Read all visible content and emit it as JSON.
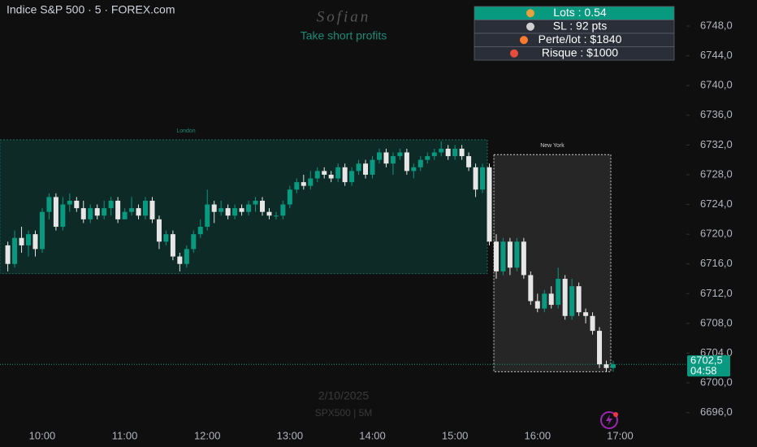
{
  "chart_data": {
    "type": "candlestick",
    "title": "Indice S&P 500 · 5 · FOREX.com",
    "watermark": "Sofian",
    "subtitle": "Take short profits",
    "date_watermark": "2/10/2025",
    "symbol_watermark": "SPX500 | 5M",
    "info": [
      "Lots : 0.54",
      "SL : 92 pts",
      "Perte/lot : $1840",
      "Risque : $1000"
    ],
    "categories": [
      null,
      null,
      null,
      null,
      null,
      "10:00",
      null,
      null,
      null,
      null,
      null,
      null,
      null,
      null,
      null,
      null,
      null,
      "11:00",
      null,
      null,
      null,
      null,
      null,
      null,
      null,
      null,
      null,
      null,
      null,
      "12:00",
      null,
      null,
      null,
      null,
      null,
      null,
      null,
      null,
      null,
      null,
      null,
      "13:00",
      null,
      null,
      null,
      null,
      null,
      null,
      null,
      null,
      null,
      null,
      null,
      "14:00",
      null,
      null,
      null,
      null,
      null,
      null,
      null,
      null,
      null,
      null,
      null,
      "15:00",
      null,
      null,
      null,
      null,
      null,
      null,
      null,
      null,
      null,
      null,
      null,
      "16:00",
      null,
      null,
      null,
      null,
      null,
      null,
      null,
      null,
      null,
      null,
      null,
      "17:00"
    ],
    "open": [
      6718.5,
      6716,
      6719.5,
      6718.5,
      6720,
      6718,
      6723,
      6725,
      6721,
      6724,
      6724.5,
      6723.5,
      6722,
      6723.5,
      6722.5,
      6723.5,
      6724.5,
      6722,
      6723,
      6723.5,
      6722.5,
      6724.5,
      6722,
      6719,
      6720,
      6717,
      6716,
      6718,
      6720,
      6721,
      6724,
      6723,
      6723.5,
      6722.5,
      6723.5,
      6723,
      6724,
      6724.5,
      6723,
      6722.5,
      6722.5,
      6724,
      6726,
      6727,
      6726.5,
      6727.5,
      6728.5,
      6728,
      6727.5,
      6729,
      6727,
      6728.5,
      6729.5,
      6728,
      6730,
      6731,
      6729.5,
      6730.5,
      6731,
      6728.5,
      6729,
      6730,
      6730.5,
      6731,
      6731.5,
      6730.5,
      6731.5,
      6730.5,
      6729,
      6726,
      6729,
      6719,
      6715,
      6719,
      6715.5,
      6719,
      6714.5,
      6711,
      6710,
      6712,
      6710.5,
      6714,
      6709,
      6713,
      6709.5,
      6709,
      6707,
      6702.5,
      6702,
      null
    ],
    "high": [
      6719,
      6720.5,
      6721,
      6720.5,
      6720.5,
      6723.5,
      6725.5,
      6725.5,
      6725,
      6725.5,
      6725,
      6724.5,
      6724,
      6724,
      6724.5,
      6725,
      6725,
      6723.5,
      6725,
      6724,
      6725,
      6725,
      6722.5,
      6720.5,
      6720.5,
      6717.5,
      6718.5,
      6720.5,
      6722,
      6726,
      6724.5,
      6724.5,
      6724,
      6724,
      6724,
      6724.5,
      6725,
      6725,
      6723.5,
      6723,
      6724.5,
      6726.5,
      6727.5,
      6728,
      6728.5,
      6729,
      6729,
      6728.5,
      6729.5,
      6729.5,
      6729,
      6730,
      6730,
      6730.5,
      6731.5,
      6731.5,
      6731,
      6731.5,
      6731.5,
      6729.5,
      6730.5,
      6731,
      6731.5,
      6732.5,
      6732,
      6732,
      6732,
      6731,
      6729.5,
      6729.5,
      6729.5,
      6720,
      6719.5,
      6719.5,
      6719.5,
      6719.5,
      6715,
      6712,
      6712.5,
      6713,
      6715.5,
      6714.5,
      6714,
      6713.5,
      6710,
      6709.5,
      6707.5,
      6703,
      6703,
      null
    ],
    "low": [
      6715,
      6715.5,
      6717.5,
      6717,
      6717,
      6717.5,
      6722,
      6720.5,
      6720.5,
      6723,
      6723,
      6721.5,
      6721.5,
      6722,
      6722,
      6722.5,
      6721.5,
      6722,
      6722.5,
      6722,
      6722,
      6721.5,
      6718,
      6718.5,
      6716.5,
      6715,
      6715.5,
      6717.5,
      6719.5,
      6720.5,
      6721.5,
      6722.5,
      6722,
      6722,
      6722.5,
      6722.5,
      6723,
      6722.5,
      6722,
      6722,
      6722,
      6723.5,
      6725.5,
      6726,
      6726,
      6727,
      6727.5,
      6727,
      6727,
      6726.5,
      6726.5,
      6728,
      6727.5,
      6727.5,
      6729.5,
      6729,
      6728,
      6730,
      6728,
      6727.5,
      6728.5,
      6729.5,
      6730,
      6730.5,
      6730,
      6730,
      6730,
      6728.5,
      6725,
      6725.5,
      6718.5,
      6714,
      6714.5,
      6714.5,
      6715,
      6714,
      6710.5,
      6709.5,
      6709.5,
      6710,
      6710,
      6708.5,
      6708.5,
      6709,
      6708,
      6706.5,
      6702,
      6701.5,
      6701.5,
      null
    ],
    "close": [
      6716,
      6719.5,
      6718.5,
      6720,
      6718,
      6723,
      6725,
      6721,
      6724,
      6724.5,
      6723.5,
      6722,
      6723.5,
      6722.5,
      6723.5,
      6724.5,
      6722,
      6723,
      6723.5,
      6722.5,
      6724.5,
      6722,
      6719,
      6720,
      6717,
      6716,
      6718,
      6720,
      6721,
      6724,
      6723,
      6723.5,
      6722.5,
      6723.5,
      6723,
      6724,
      6724.5,
      6723,
      6722.5,
      6722.5,
      6724,
      6726,
      6727,
      6726.5,
      6727.5,
      6728.5,
      6728,
      6727.5,
      6729,
      6727,
      6728.5,
      6729.5,
      6728,
      6730,
      6731,
      6729.5,
      6730.5,
      6731,
      6728.5,
      6729,
      6730,
      6730.5,
      6731,
      6731.5,
      6730.5,
      6731.5,
      6730.5,
      6729,
      6726,
      6729,
      6719,
      6715,
      6719,
      6715.5,
      6719,
      6714.5,
      6711,
      6710,
      6712,
      6710.5,
      6714,
      6709,
      6713,
      6709.5,
      6709,
      6707,
      6702.5,
      6702,
      6702.5,
      null
    ],
    "up_color": "#089981",
    "down_color": "#e6e6e6",
    "sessions": [
      {
        "label": "London",
        "high": 6732.7,
        "low": 6714.7
      },
      {
        "label": "New York",
        "high": 6730.7,
        "low": 6701.5
      }
    ],
    "last_price": {
      "value": 6702.5,
      "label": "6702,5"
    },
    "countdown": "04:58",
    "ylim": [
      6694,
      6751.5
    ],
    "yticks": [
      {
        "value": 6696,
        "label": "6696,0"
      },
      {
        "value": 6700,
        "label": "6700,0"
      },
      {
        "value": 6704,
        "label": "6704,0"
      },
      {
        "value": 6708,
        "label": "6708,0"
      },
      {
        "value": 6712,
        "label": "6712,0"
      },
      {
        "value": 6716,
        "label": "6716,0"
      },
      {
        "value": 6720,
        "label": "6720,0"
      },
      {
        "value": 6724,
        "label": "6724,0"
      },
      {
        "value": 6728,
        "label": "6728,0"
      },
      {
        "value": 6732,
        "label": "6732,0"
      },
      {
        "value": 6736,
        "label": "6736,0"
      },
      {
        "value": 6740,
        "label": "6740,0"
      },
      {
        "value": 6744,
        "label": "6744,0"
      },
      {
        "value": 6748,
        "label": "6748,0"
      }
    ]
  }
}
